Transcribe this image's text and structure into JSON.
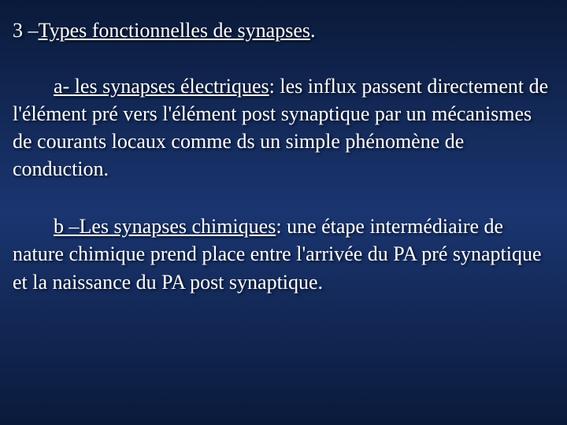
{
  "slide": {
    "background_gradient": [
      "#0a1a3a",
      "#1a3570",
      "#0a1a3a"
    ],
    "text_color": "#ffffff",
    "font_family": "Times New Roman",
    "title_fontsize": 26,
    "body_fontsize": 26,
    "title": {
      "prefix": "3 –",
      "underlined": "Types fonctionnelles de synapses",
      "suffix": "."
    },
    "section_a": {
      "label_underlined": "a-  les synapses électriques",
      "colon": ":",
      "body": " les influx passent directement de l'élément pré vers l'élément post synaptique par un mécanismes de courants locaux comme ds un simple phénomène de conduction."
    },
    "section_b": {
      "label_underlined": "b –Les synapses chimiques",
      "colon": ":",
      "body": " une étape intermédiaire de nature chimique prend place entre l'arrivée du PA pré synaptique et la naissance du PA post synaptique."
    }
  }
}
